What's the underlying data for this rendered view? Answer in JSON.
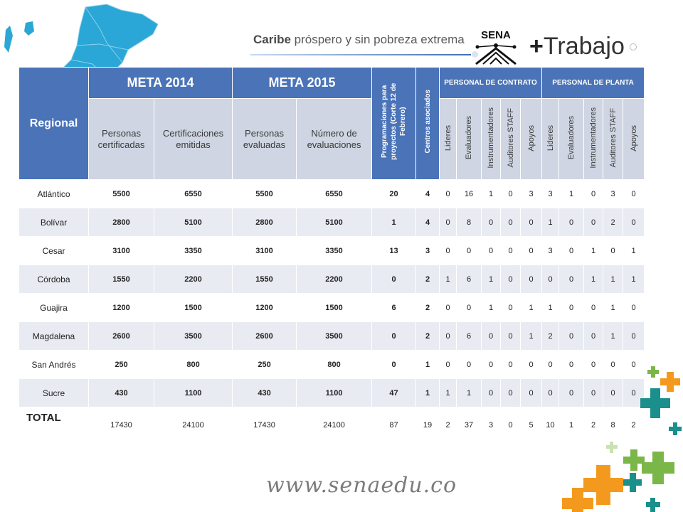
{
  "header": {
    "tagline_bold": "Caribe",
    "tagline_rest": " próspero y sin pobreza extrema",
    "logo_text": "SENA",
    "trabajo_plus": "+",
    "trabajo_text": "Trabajo"
  },
  "colors": {
    "header_blue": "#4a73b8",
    "subheader_gray": "#cfd5e2",
    "row_alt": "#e8ebf2",
    "accent_green": "#7ab648",
    "accent_orange": "#f39a1e",
    "accent_teal": "#1a8f8c"
  },
  "table": {
    "regional_label": "Regional",
    "meta_2014": "META 2014",
    "meta_2015": "META 2015",
    "programaciones": "Programaciones para proyectos (Corte 12 de Febrero)",
    "centros": "Centros asociados",
    "personal_contrato": "PERSONAL DE CONTRATO",
    "personal_planta": "PERSONAL DE PLANTA",
    "sub": {
      "personas_cert": "Personas certificadas",
      "cert_emitidas": "Certificaciones emitidas",
      "personas_eval": "Personas evaluadas",
      "num_eval": "Número de evaluaciones"
    },
    "roles": [
      "Lideres",
      "Evaluadores",
      "Instrumentadores",
      "Auditores STAFF",
      "Apoyos",
      "Lideres",
      "Evaluadores",
      "Instrumentadores",
      "Auditores STAFF",
      "Apoyos"
    ],
    "rows": [
      {
        "name": "Atlántico",
        "v": [
          "5500",
          "6550",
          "5500",
          "6550",
          "20",
          "4",
          "0",
          "16",
          "1",
          "0",
          "3",
          "3",
          "1",
          "0",
          "3",
          "0"
        ]
      },
      {
        "name": "Bolívar",
        "v": [
          "2800",
          "5100",
          "2800",
          "5100",
          "1",
          "4",
          "0",
          "8",
          "0",
          "0",
          "0",
          "1",
          "0",
          "0",
          "2",
          "0"
        ]
      },
      {
        "name": "Cesar",
        "v": [
          "3100",
          "3350",
          "3100",
          "3350",
          "13",
          "3",
          "0",
          "0",
          "0",
          "0",
          "0",
          "3",
          "0",
          "1",
          "0",
          "1"
        ]
      },
      {
        "name": "Córdoba",
        "v": [
          "1550",
          "2200",
          "1550",
          "2200",
          "0",
          "2",
          "1",
          "6",
          "1",
          "0",
          "0",
          "0",
          "0",
          "1",
          "1",
          "1"
        ]
      },
      {
        "name": "Guajira",
        "v": [
          "1200",
          "1500",
          "1200",
          "1500",
          "6",
          "2",
          "0",
          "0",
          "1",
          "0",
          "1",
          "1",
          "0",
          "0",
          "1",
          "0"
        ]
      },
      {
        "name": "Magdalena",
        "v": [
          "2600",
          "3500",
          "2600",
          "3500",
          "0",
          "2",
          "0",
          "6",
          "0",
          "0",
          "1",
          "2",
          "0",
          "0",
          "1",
          "0"
        ]
      },
      {
        "name": "San Andrés",
        "v": [
          "250",
          "800",
          "250",
          "800",
          "0",
          "1",
          "0",
          "0",
          "0",
          "0",
          "0",
          "0",
          "0",
          "0",
          "0",
          "0"
        ]
      },
      {
        "name": "Sucre",
        "v": [
          "430",
          "1100",
          "430",
          "1100",
          "47",
          "1",
          "1",
          "1",
          "0",
          "0",
          "0",
          "0",
          "0",
          "0",
          "0",
          "0"
        ]
      }
    ],
    "total": {
      "name": "TOTAL",
      "v": [
        "17430",
        "24100",
        "17430",
        "24100",
        "87",
        "19",
        "2",
        "37",
        "3",
        "0",
        "5",
        "10",
        "1",
        "2",
        "8",
        "2"
      ]
    }
  },
  "footer": {
    "website": "www.senaedu.co"
  }
}
